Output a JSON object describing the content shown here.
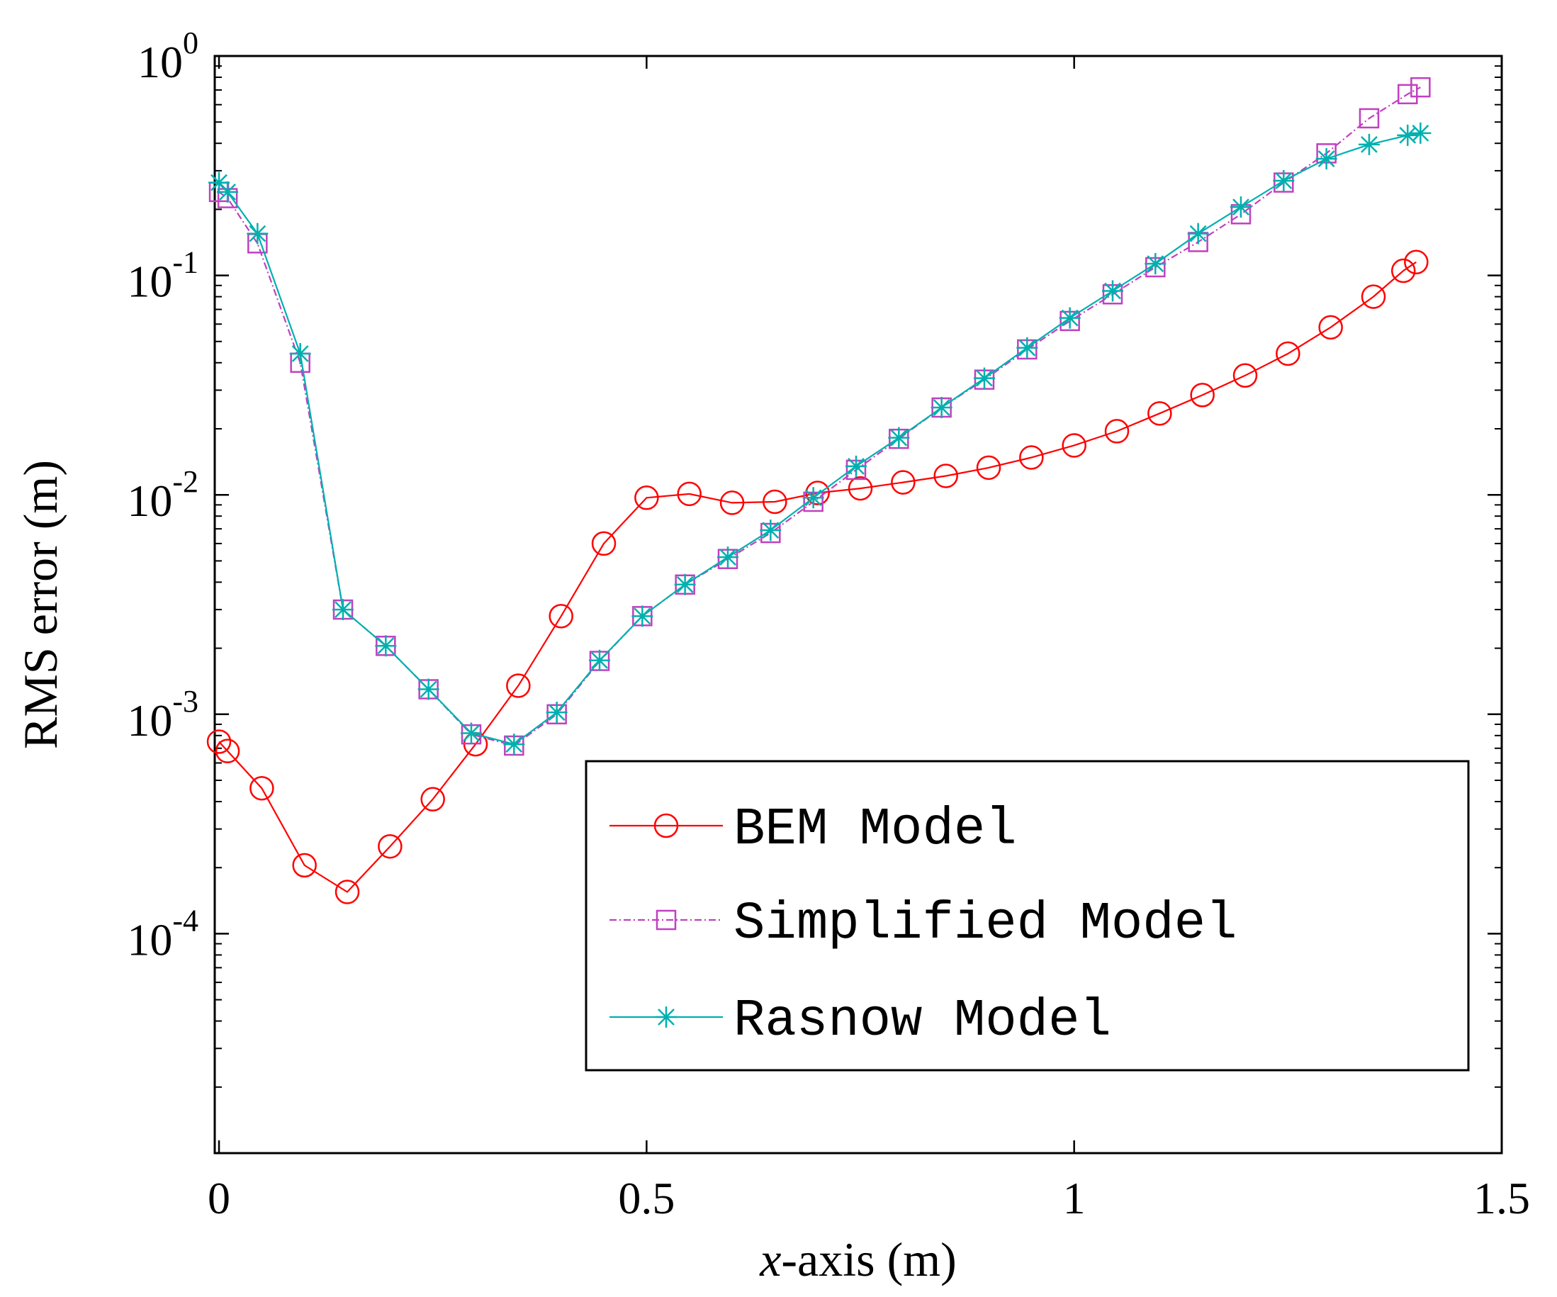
{
  "chart_data": {
    "type": "line",
    "y_scale": "log",
    "xlabel_italic": "x",
    "xlabel_rest": "-axis (m)",
    "ylabel": "RMS error (m)",
    "xlim": [
      -0.005,
      1.5
    ],
    "ylim": [
      1e-05,
      1
    ],
    "x_ticks": [
      0,
      0.5,
      1,
      1.5
    ],
    "x_tick_labels": [
      "0",
      "0.5",
      "1",
      "1.5"
    ],
    "y_ticks": [
      0.0001,
      0.001,
      0.01,
      0.1,
      1
    ],
    "y_tick_labels": [
      {
        "base": "10",
        "exp": "-4"
      },
      {
        "base": "10",
        "exp": "-3"
      },
      {
        "base": "10",
        "exp": "-2"
      },
      {
        "base": "10",
        "exp": "-1"
      },
      {
        "base": "10",
        "exp": "0"
      }
    ],
    "legend_position": "bottom-right",
    "series": [
      {
        "name": "BEM Model",
        "color": "#ff0000",
        "marker": "circle",
        "line": "solid",
        "x": [
          0,
          0.01,
          0.05,
          0.1,
          0.15,
          0.2,
          0.25,
          0.3,
          0.35,
          0.4,
          0.45,
          0.5,
          0.55,
          0.6,
          0.65,
          0.7,
          0.75,
          0.8,
          0.85,
          0.9,
          0.95,
          1.0,
          1.05,
          1.1,
          1.15,
          1.2,
          1.25,
          1.3,
          1.35,
          1.385,
          1.4
        ],
        "y": [
          0.00075,
          0.00068,
          0.00046,
          0.000205,
          0.000155,
          0.00025,
          0.00041,
          0.00073,
          0.00135,
          0.0028,
          0.006,
          0.0097,
          0.0101,
          0.0092,
          0.0093,
          0.0102,
          0.0107,
          0.0114,
          0.0122,
          0.0133,
          0.0148,
          0.0168,
          0.0195,
          0.0235,
          0.0285,
          0.035,
          0.044,
          0.058,
          0.08,
          0.105,
          0.115
        ]
      },
      {
        "name": "Simplified Model",
        "color": "#c040c0",
        "marker": "square",
        "line": "dashdot",
        "x": [
          0,
          0.01,
          0.045,
          0.095,
          0.145,
          0.195,
          0.245,
          0.295,
          0.345,
          0.395,
          0.445,
          0.495,
          0.545,
          0.595,
          0.645,
          0.695,
          0.745,
          0.795,
          0.845,
          0.895,
          0.945,
          0.995,
          1.045,
          1.095,
          1.145,
          1.195,
          1.245,
          1.295,
          1.345,
          1.39,
          1.405
        ],
        "y": [
          0.24,
          0.225,
          0.14,
          0.04,
          0.003,
          0.00205,
          0.0013,
          0.00081,
          0.00072,
          0.001,
          0.00175,
          0.0028,
          0.0039,
          0.0051,
          0.0067,
          0.0093,
          0.013,
          0.018,
          0.025,
          0.0335,
          0.046,
          0.062,
          0.082,
          0.109,
          0.142,
          0.19,
          0.265,
          0.36,
          0.52,
          0.67,
          0.72
        ]
      },
      {
        "name": "Rasnow Model",
        "color": "#00b0b0",
        "marker": "asterisk",
        "line": "solid",
        "x": [
          0,
          0.01,
          0.045,
          0.095,
          0.145,
          0.195,
          0.245,
          0.295,
          0.345,
          0.395,
          0.445,
          0.495,
          0.545,
          0.595,
          0.645,
          0.695,
          0.745,
          0.795,
          0.845,
          0.895,
          0.945,
          0.995,
          1.045,
          1.095,
          1.145,
          1.195,
          1.245,
          1.295,
          1.345,
          1.39,
          1.405
        ],
        "y": [
          0.265,
          0.24,
          0.155,
          0.044,
          0.003,
          0.00205,
          0.0013,
          0.00082,
          0.00073,
          0.00102,
          0.00176,
          0.0028,
          0.0039,
          0.0052,
          0.0069,
          0.0097,
          0.0135,
          0.0182,
          0.025,
          0.034,
          0.0468,
          0.064,
          0.085,
          0.113,
          0.155,
          0.205,
          0.27,
          0.34,
          0.395,
          0.435,
          0.445
        ]
      }
    ]
  }
}
